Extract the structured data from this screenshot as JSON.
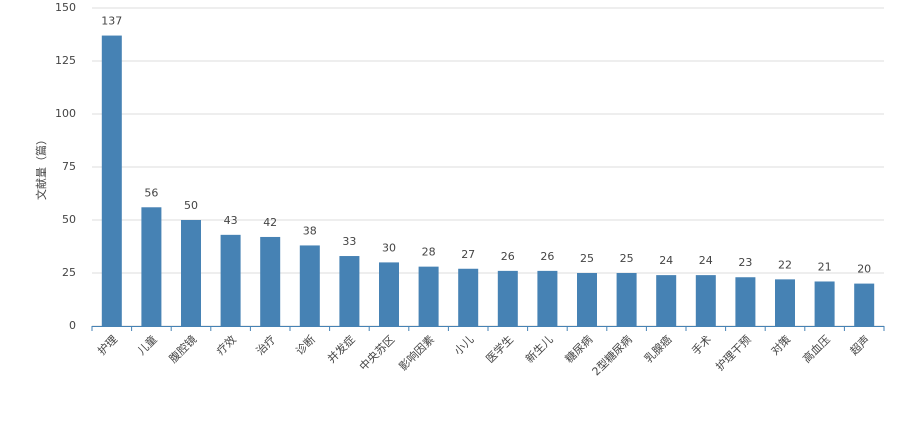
{
  "chart_data": {
    "type": "bar",
    "y_label": "文献量（篇）",
    "categories": [
      "护理",
      "儿童",
      "腹腔镜",
      "疗效",
      "治疗",
      "诊断",
      "并发症",
      "中央苏区",
      "影响因素",
      "小儿",
      "医学生",
      "新生儿",
      "糖尿病",
      "2型糖尿病",
      "乳腺癌",
      "手术",
      "护理干预",
      "对策",
      "高血压",
      "超声"
    ],
    "values": [
      137,
      56,
      50,
      43,
      42,
      38,
      33,
      30,
      28,
      27,
      26,
      26,
      25,
      25,
      24,
      24,
      23,
      22,
      21,
      20
    ],
    "color": "#4682b4",
    "ylim": [
      0,
      150
    ],
    "yticks": [
      0,
      25,
      50,
      75,
      100,
      125,
      150
    ],
    "grid": true
  }
}
